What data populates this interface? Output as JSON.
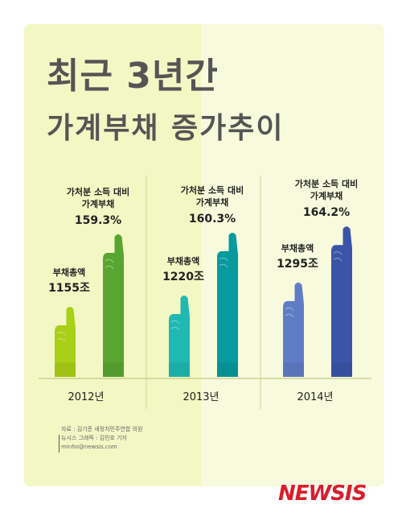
{
  "header": {
    "title_line1": "최근 3년간",
    "title_line2": "가계부채 증가추이"
  },
  "chart_data": {
    "type": "bar",
    "title": "최근 3년간 가계부채 증가추이",
    "categories": [
      "2012년",
      "2013년",
      "2014년"
    ],
    "series": [
      {
        "name": "부채총액",
        "label": "부채총액",
        "values": [
          1155,
          1220,
          1295
        ],
        "value_labels": [
          "1155조",
          "1220조",
          "1295조"
        ],
        "colors": [
          "#a9cf17",
          "#1fb8b2",
          "#5f7dc6"
        ]
      },
      {
        "name": "가처분 소득 대비 가계부채",
        "label_line1": "가처분 소득 대비",
        "label_line2": "가계부채",
        "values": [
          159.3,
          160.3,
          164.2
        ],
        "value_labels": [
          "159.3%",
          "160.3%",
          "164.2%"
        ],
        "colors": [
          "#59a531",
          "#079a9e",
          "#3a55a8"
        ]
      }
    ]
  },
  "footer": {
    "source_line1": "자료 : 김기준 새정치민주연합 의원",
    "source_line2": "뉴시스 그래픽 : 김민호 기자",
    "source_line3": "minho@newsis.com",
    "logo": "NEWSIS"
  }
}
